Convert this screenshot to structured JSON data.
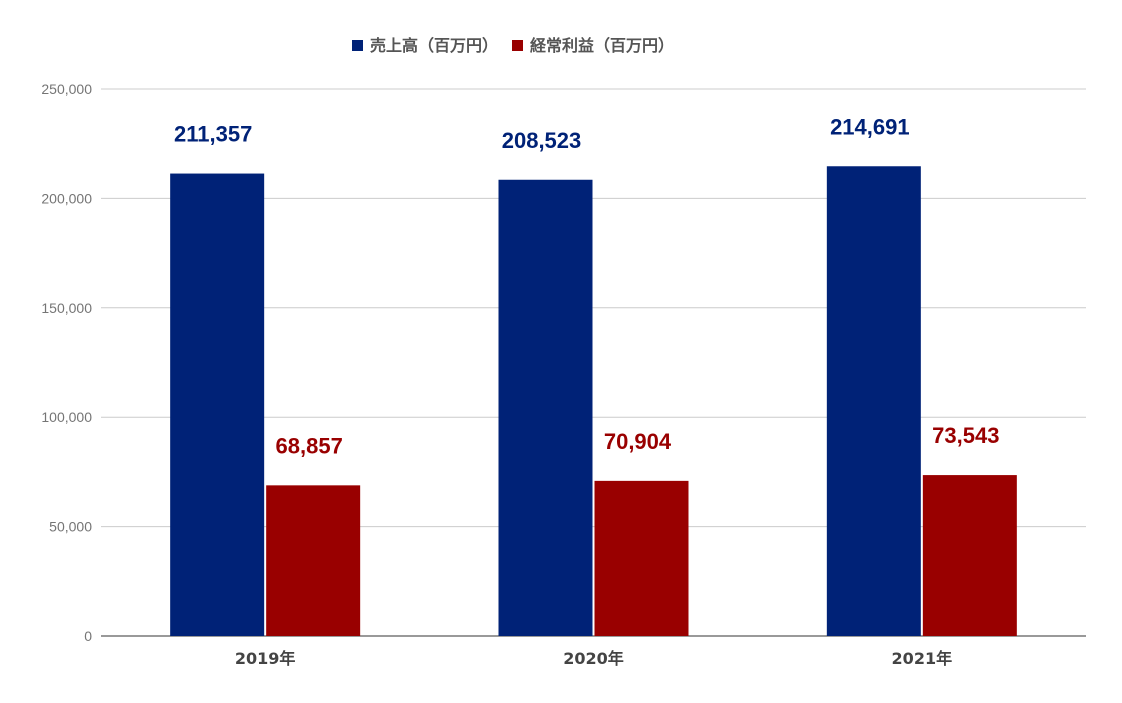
{
  "chart_data": {
    "type": "bar",
    "categories": [
      "2019年",
      "2020年",
      "2021年"
    ],
    "series": [
      {
        "name": "売上高（百万円）",
        "color": "#002277",
        "values": [
          211357,
          208523,
          214691
        ],
        "labels": [
          "211,357",
          "208,523",
          "214,691"
        ]
      },
      {
        "name": "経常利益（百万円）",
        "color": "#990000",
        "values": [
          68857,
          70904,
          73543
        ],
        "labels": [
          "68,857",
          "70,904",
          "73,543"
        ]
      }
    ],
    "ylim": [
      0,
      250000
    ],
    "yticks": [
      0,
      50000,
      100000,
      150000,
      200000,
      250000
    ],
    "ytick_labels": [
      "0",
      "50,000",
      "100,000",
      "150,000",
      "200,000",
      "250,000"
    ],
    "grid": true,
    "legend_position": "top"
  }
}
